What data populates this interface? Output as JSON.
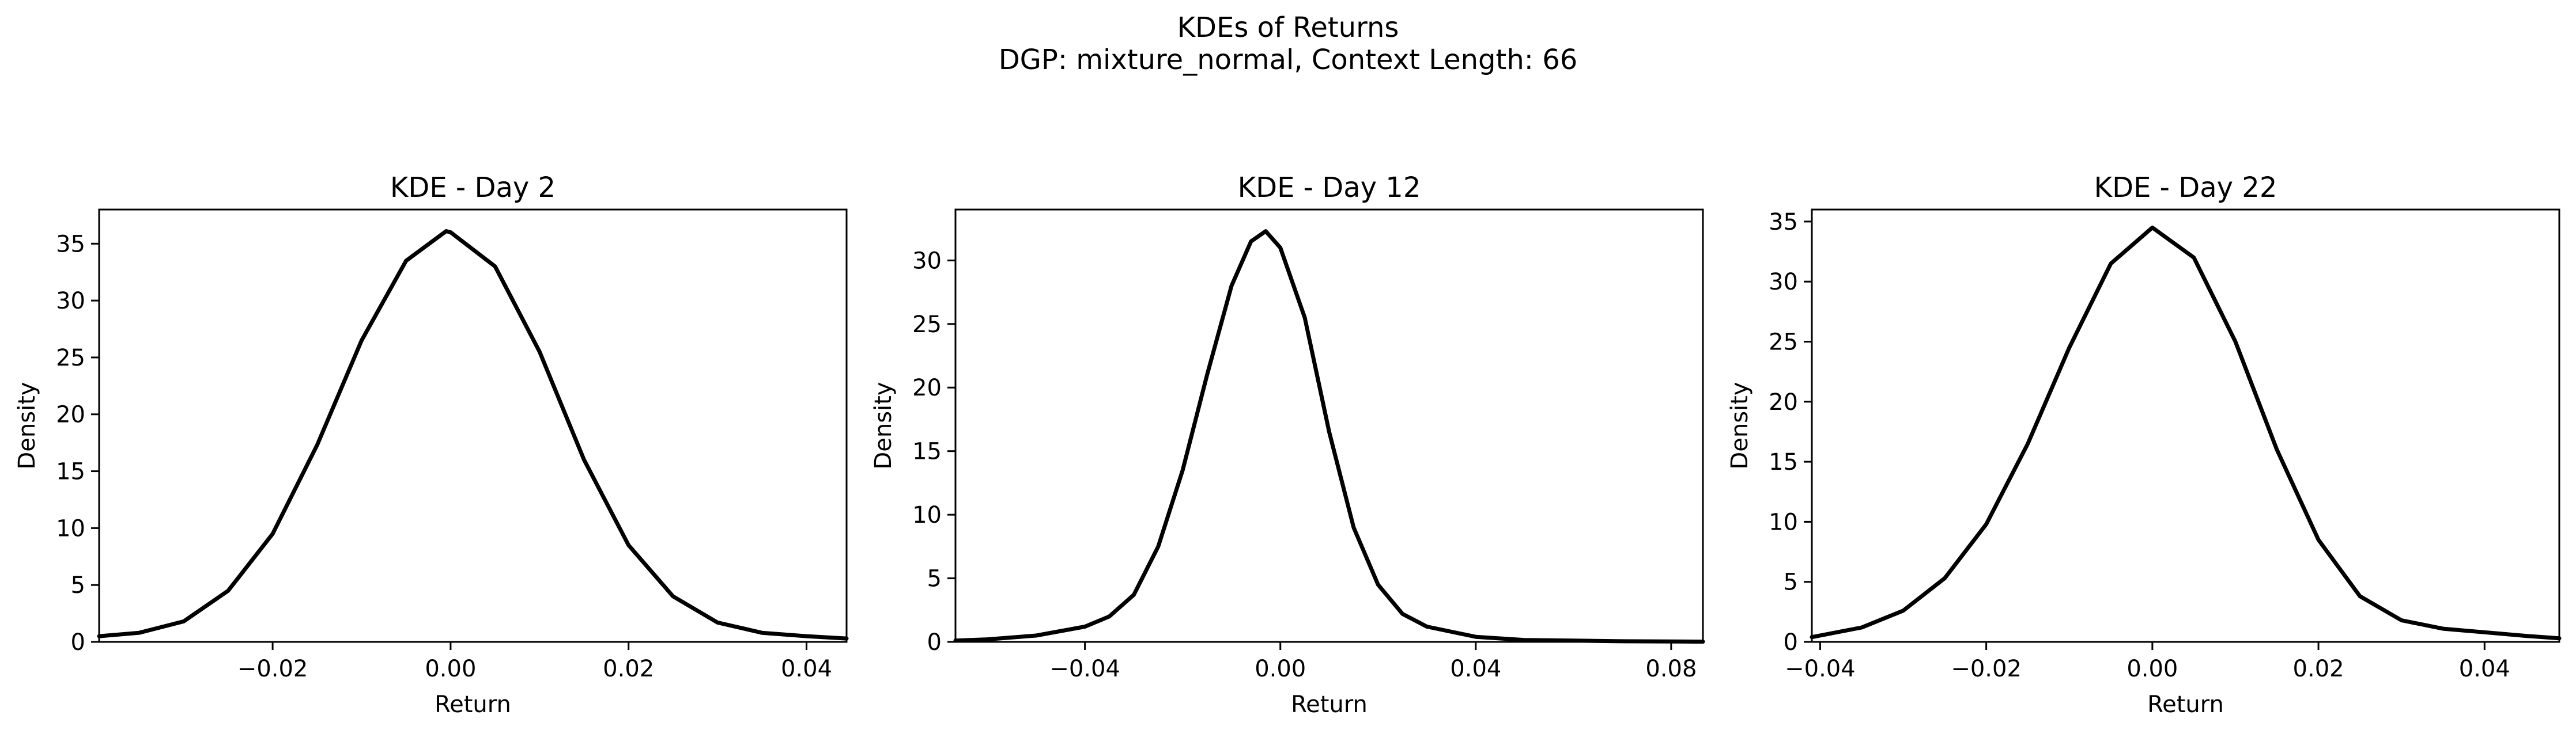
{
  "figure": {
    "title_line1": "KDEs of Returns",
    "title_line2": "DGP: mixture_normal, Context Length: 66"
  },
  "chart_data": [
    {
      "type": "line",
      "title": "KDE - Day 2",
      "xlabel": "Return",
      "ylabel": "Density",
      "xlim": [
        -0.0395,
        0.0445
      ],
      "ylim": [
        0,
        38
      ],
      "xticks": [
        -0.02,
        0.0,
        0.02,
        0.04
      ],
      "xtick_labels": [
        "−0.02",
        "0.00",
        "0.02",
        "0.04"
      ],
      "yticks": [
        0,
        5,
        10,
        15,
        20,
        25,
        30,
        35
      ],
      "ytick_labels": [
        "0",
        "5",
        "10",
        "15",
        "20",
        "25",
        "30",
        "35"
      ],
      "grid": false,
      "series": [
        {
          "color": "#000000",
          "x": [
            -0.0395,
            -0.035,
            -0.03,
            -0.025,
            -0.02,
            -0.015,
            -0.01,
            -0.005,
            -0.0005,
            0.0,
            0.005,
            0.01,
            0.015,
            0.02,
            0.025,
            0.03,
            0.035,
            0.04,
            0.0445
          ],
          "y": [
            0.5,
            0.8,
            1.8,
            4.5,
            9.5,
            17.3,
            26.5,
            33.5,
            36.1,
            36.0,
            33.0,
            25.5,
            16.0,
            8.5,
            4.0,
            1.7,
            0.8,
            0.5,
            0.3
          ]
        }
      ]
    },
    {
      "type": "line",
      "title": "KDE - Day 12",
      "xlabel": "Return",
      "ylabel": "Density",
      "xlim": [
        -0.0665,
        0.0865
      ],
      "ylim": [
        0,
        34
      ],
      "xticks": [
        -0.04,
        0.0,
        0.04,
        0.08
      ],
      "xtick_labels": [
        "−0.04",
        "0.00",
        "0.04",
        "0.08"
      ],
      "yticks": [
        0,
        5,
        10,
        15,
        20,
        25,
        30
      ],
      "ytick_labels": [
        "0",
        "5",
        "10",
        "15",
        "20",
        "25",
        "30"
      ],
      "grid": false,
      "series": [
        {
          "color": "#000000",
          "x": [
            -0.0665,
            -0.06,
            -0.05,
            -0.04,
            -0.035,
            -0.03,
            -0.025,
            -0.02,
            -0.015,
            -0.01,
            -0.006,
            -0.003,
            0.0,
            0.005,
            0.01,
            0.015,
            0.02,
            0.025,
            0.03,
            0.04,
            0.05,
            0.06,
            0.07,
            0.0865
          ],
          "y": [
            0.1,
            0.2,
            0.5,
            1.2,
            2.0,
            3.7,
            7.5,
            13.5,
            21.0,
            28.0,
            31.5,
            32.3,
            31.0,
            25.5,
            16.5,
            9.0,
            4.5,
            2.2,
            1.2,
            0.4,
            0.15,
            0.1,
            0.05,
            0.02
          ]
        }
      ]
    },
    {
      "type": "line",
      "title": "KDE - Day 22",
      "xlabel": "Return",
      "ylabel": "Density",
      "xlim": [
        -0.041,
        0.049
      ],
      "ylim": [
        0,
        36
      ],
      "xticks": [
        -0.04,
        -0.02,
        0.0,
        0.02,
        0.04
      ],
      "xtick_labels": [
        "−0.04",
        "−0.02",
        "0.00",
        "0.02",
        "0.04"
      ],
      "yticks": [
        0,
        5,
        10,
        15,
        20,
        25,
        30,
        35
      ],
      "ytick_labels": [
        "0",
        "5",
        "10",
        "15",
        "20",
        "25",
        "30",
        "35"
      ],
      "grid": false,
      "series": [
        {
          "color": "#000000",
          "x": [
            -0.041,
            -0.035,
            -0.03,
            -0.025,
            -0.02,
            -0.015,
            -0.01,
            -0.005,
            0.0,
            0.005,
            0.01,
            0.015,
            0.02,
            0.025,
            0.03,
            0.035,
            0.04,
            0.045,
            0.049
          ],
          "y": [
            0.4,
            1.2,
            2.6,
            5.3,
            9.8,
            16.5,
            24.5,
            31.5,
            34.5,
            32.0,
            25.0,
            16.0,
            8.5,
            3.8,
            1.8,
            1.1,
            0.8,
            0.5,
            0.3
          ]
        }
      ]
    }
  ]
}
